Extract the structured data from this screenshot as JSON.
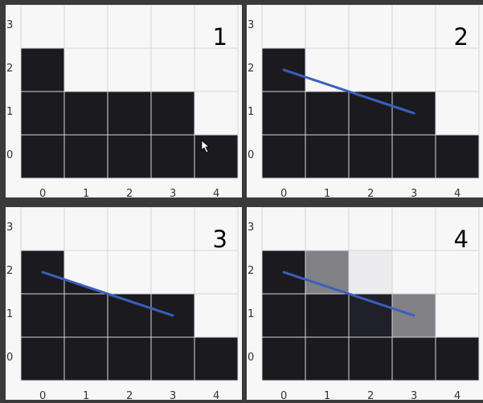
{
  "colors": {
    "background": "#3a3a3a",
    "panel": "#f7f7f8",
    "grid": "#d4d4da",
    "dark": "#1b1b1f",
    "gray": "#808085",
    "light_gray": "#ececee",
    "dark_navy": "#202029",
    "line": "#3a5fbf"
  },
  "axes": {
    "x_ticks": [
      "0",
      "1",
      "2",
      "3",
      "4"
    ],
    "y_ticks": [
      "0",
      "1",
      "2",
      "3"
    ]
  },
  "panels": [
    {
      "label": "1",
      "cells": [
        {
          "col": 0,
          "row": 2,
          "shade": "dark"
        },
        {
          "col": 0,
          "row": 1,
          "shade": "dark"
        },
        {
          "col": 1,
          "row": 1,
          "shade": "dark"
        },
        {
          "col": 2,
          "row": 1,
          "shade": "dark"
        },
        {
          "col": 3,
          "row": 1,
          "shade": "dark"
        },
        {
          "col": 0,
          "row": 0,
          "shade": "dark"
        },
        {
          "col": 1,
          "row": 0,
          "shade": "dark"
        },
        {
          "col": 2,
          "row": 0,
          "shade": "dark"
        },
        {
          "col": 3,
          "row": 0,
          "shade": "dark"
        },
        {
          "col": 4,
          "row": 0,
          "shade": "dark"
        }
      ],
      "line": null,
      "cursor": true
    },
    {
      "label": "2",
      "cells": [
        {
          "col": 0,
          "row": 2,
          "shade": "dark"
        },
        {
          "col": 0,
          "row": 1,
          "shade": "dark"
        },
        {
          "col": 1,
          "row": 1,
          "shade": "dark"
        },
        {
          "col": 2,
          "row": 1,
          "shade": "dark"
        },
        {
          "col": 3,
          "row": 1,
          "shade": "dark"
        },
        {
          "col": 0,
          "row": 0,
          "shade": "dark"
        },
        {
          "col": 1,
          "row": 0,
          "shade": "dark"
        },
        {
          "col": 2,
          "row": 0,
          "shade": "dark"
        },
        {
          "col": 3,
          "row": 0,
          "shade": "dark"
        },
        {
          "col": 4,
          "row": 0,
          "shade": "dark"
        }
      ],
      "line": {
        "x1": 0.5,
        "y1": 2.5,
        "x2": 3.5,
        "y2": 1.5
      }
    },
    {
      "label": "3",
      "cells": [
        {
          "col": 0,
          "row": 2,
          "shade": "dark"
        },
        {
          "col": 0,
          "row": 1,
          "shade": "dark"
        },
        {
          "col": 1,
          "row": 1,
          "shade": "dark"
        },
        {
          "col": 2,
          "row": 1,
          "shade": "dark"
        },
        {
          "col": 3,
          "row": 1,
          "shade": "dark"
        },
        {
          "col": 0,
          "row": 0,
          "shade": "dark"
        },
        {
          "col": 1,
          "row": 0,
          "shade": "dark"
        },
        {
          "col": 2,
          "row": 0,
          "shade": "dark"
        },
        {
          "col": 3,
          "row": 0,
          "shade": "dark"
        },
        {
          "col": 4,
          "row": 0,
          "shade": "dark"
        }
      ],
      "polygon": [
        [
          0.5,
          2.5
        ],
        [
          3.5,
          1.5
        ],
        [
          3.5,
          1.0
        ],
        [
          0.5,
          1.0
        ]
      ],
      "line": {
        "x1": 0.5,
        "y1": 2.5,
        "x2": 3.5,
        "y2": 1.5
      }
    },
    {
      "label": "4",
      "cells": [
        {
          "col": 0,
          "row": 2,
          "shade": "dark"
        },
        {
          "col": 1,
          "row": 2,
          "shade": "gray"
        },
        {
          "col": 2,
          "row": 2,
          "shade": "light_gray"
        },
        {
          "col": 0,
          "row": 1,
          "shade": "dark"
        },
        {
          "col": 1,
          "row": 1,
          "shade": "dark"
        },
        {
          "col": 2,
          "row": 1,
          "shade": "dark_navy"
        },
        {
          "col": 3,
          "row": 1,
          "shade": "gray"
        },
        {
          "col": 0,
          "row": 0,
          "shade": "dark"
        },
        {
          "col": 1,
          "row": 0,
          "shade": "dark"
        },
        {
          "col": 2,
          "row": 0,
          "shade": "dark"
        },
        {
          "col": 3,
          "row": 0,
          "shade": "dark"
        },
        {
          "col": 4,
          "row": 0,
          "shade": "dark"
        }
      ],
      "line": {
        "x1": 0.5,
        "y1": 2.5,
        "x2": 3.5,
        "y2": 1.5
      }
    }
  ]
}
